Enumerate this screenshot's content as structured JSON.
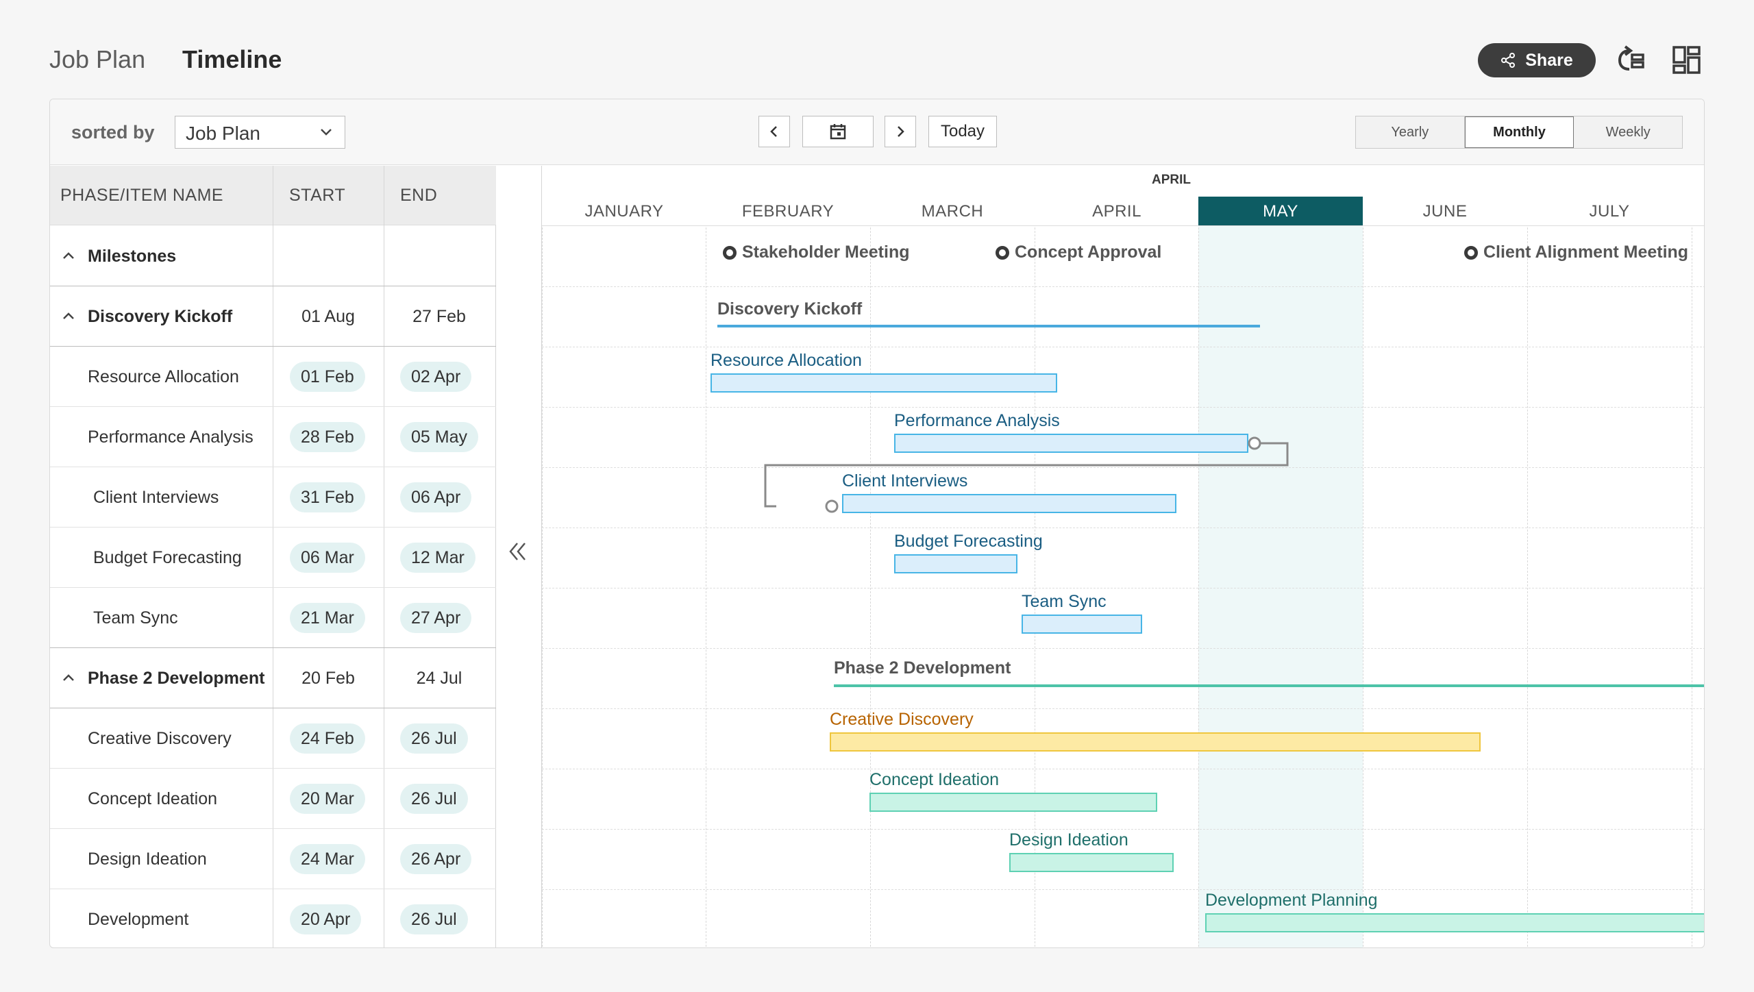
{
  "header": {
    "tab_job_plan": "Job Plan",
    "tab_timeline": "Timeline",
    "share_label": "Share",
    "icons": [
      "share-icon",
      "redo-icon",
      "grid-view-icon"
    ]
  },
  "toolbar": {
    "sorted_by_label": "sorted by",
    "sort_value": "Job Plan",
    "today_label": "Today",
    "views": [
      "Yearly",
      "Monthly",
      "Weekly"
    ],
    "active_view": "Monthly"
  },
  "table": {
    "headers": {
      "name": "PHASE/ITEM NAME",
      "start": "START",
      "end": "END"
    },
    "rows": [
      {
        "name": "Milestones",
        "start": "",
        "end": ""
      },
      {
        "name": "Discovery Kickoff",
        "start": "01 Aug",
        "end": "27 Feb"
      },
      {
        "name": "Resource Allocation",
        "start": "01 Feb",
        "end": "02 Apr"
      },
      {
        "name": "Performance Analysis",
        "start": "28 Feb",
        "end": "05 May"
      },
      {
        "name": "Client Interviews",
        "start": "31 Feb",
        "end": "06 Apr"
      },
      {
        "name": "Budget Forecasting",
        "start": "06 Mar",
        "end": "12 Mar"
      },
      {
        "name": "Team Sync",
        "start": "21 Mar",
        "end": "27 Apr"
      },
      {
        "name": "Phase 2 Development",
        "start": "20 Feb",
        "end": "24 Jul"
      },
      {
        "name": "Creative Discovery",
        "start": "24 Feb",
        "end": "26 Jul"
      },
      {
        "name": "Concept Ideation",
        "start": "20 Mar",
        "end": "26 Jul"
      },
      {
        "name": "Design Ideation",
        "start": "24 Mar",
        "end": "26 Apr"
      },
      {
        "name": "Development",
        "start": "20 Apr",
        "end": "26 Jul"
      }
    ]
  },
  "timeline": {
    "top_label": "APRIL",
    "months": [
      "JANUARY",
      "FEBRUARY",
      "MARCH",
      "APRIL",
      "MAY",
      "JUNE",
      "JULY"
    ],
    "current_month": "MAY",
    "milestones": [
      "Stakeholder Meeting",
      "Concept Approval",
      "Client Alignment Meeting"
    ],
    "groups": [
      "Discovery Kickoff",
      "Phase 2 Development"
    ],
    "bars": [
      "Resource Allocation",
      "Performance Analysis",
      "Client Interviews",
      "Budget Forecasting",
      "Team Sync",
      "Creative Discovery",
      "Concept Ideation",
      "Design Ideation",
      "Development Planning"
    ],
    "colors": {
      "accent_month": "#0d5c63",
      "blue_bar": "#47b5e6",
      "yellow_bar": "#efc63e",
      "green_bar": "#5ed1b3",
      "discovery_line": "#4aa9dc",
      "phase2_line": "#4dc3a8"
    }
  }
}
